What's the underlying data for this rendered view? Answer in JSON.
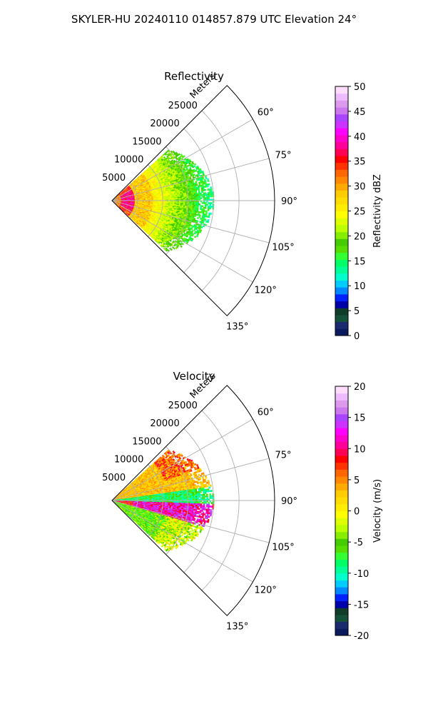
{
  "figure": {
    "suptitle": "SKYLER-HU  20240110  014857.879 UTC Elevation 24°"
  },
  "chart_data": [
    {
      "type": "heatmap",
      "projection": "polar-sector",
      "title": "Reflectivity",
      "range_label": "Meters",
      "range_ticks": [
        5000,
        10000,
        15000,
        20000,
        25000
      ],
      "azimuth_ticks": [
        "60°",
        "75°",
        "90°",
        "105°",
        "120°",
        "135°"
      ],
      "azimuth_range_deg": [
        45,
        135
      ],
      "colorbar": {
        "label": "Reflectivity dBZ",
        "ticks": [
          0,
          5,
          10,
          15,
          20,
          25,
          30,
          35,
          40,
          45,
          50
        ],
        "vmin": 0,
        "vmax": 50,
        "colors": [
          "#0b1a5c",
          "#1a2a6e",
          "#14503a",
          "#0f3d2a",
          "#0000aa",
          "#0022ff",
          "#0088ff",
          "#00ccff",
          "#00ffcc",
          "#00ff99",
          "#00ff66",
          "#33ff33",
          "#55dd00",
          "#44cc00",
          "#88ee00",
          "#bbff00",
          "#ddff00",
          "#ffff00",
          "#ffee00",
          "#ffdd00",
          "#ffcc00",
          "#ffaa00",
          "#ff8800",
          "#ff6600",
          "#ff3300",
          "#ff0000",
          "#ff0055",
          "#ff0099",
          "#ff00cc",
          "#ff00ff",
          "#cc33ff",
          "#aa44ff",
          "#cc77ee",
          "#dd99ee",
          "#eebbff",
          "#ffddff"
        ]
      }
    },
    {
      "type": "heatmap",
      "projection": "polar-sector",
      "title": "Velocity",
      "range_label": "Meters",
      "range_ticks": [
        5000,
        10000,
        15000,
        20000,
        25000
      ],
      "azimuth_ticks": [
        "60°",
        "75°",
        "90°",
        "105°",
        "120°",
        "135°"
      ],
      "azimuth_range_deg": [
        45,
        135
      ],
      "colorbar": {
        "label": "Velocity (m/s)",
        "ticks": [
          -20,
          -15,
          -10,
          -5,
          0,
          5,
          10,
          15,
          20
        ],
        "vmin": -20,
        "vmax": 20,
        "colors": [
          "#0b1a5c",
          "#1a2a6e",
          "#14503a",
          "#0f3d2a",
          "#0000aa",
          "#0022ff",
          "#0088ff",
          "#00ccff",
          "#00ffcc",
          "#00ff99",
          "#00ff66",
          "#33ff33",
          "#55dd00",
          "#44cc00",
          "#88ee00",
          "#bbff00",
          "#ddff00",
          "#ffff00",
          "#ffee00",
          "#ffdd00",
          "#ffcc00",
          "#ffaa00",
          "#ff8800",
          "#ff6600",
          "#ff3300",
          "#ff0000",
          "#ff0055",
          "#ff0099",
          "#ff00cc",
          "#ff00ff",
          "#cc33ff",
          "#aa44ff",
          "#cc77ee",
          "#dd99ee",
          "#eebbff",
          "#ffddff"
        ]
      }
    }
  ]
}
